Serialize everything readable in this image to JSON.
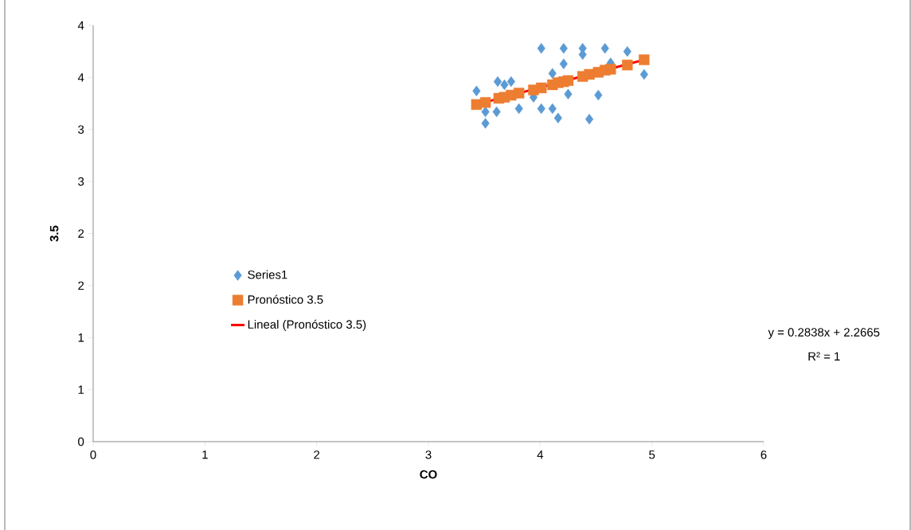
{
  "chart_data": {
    "type": "scatter",
    "xlabel": "CO",
    "ylabel": "3.5",
    "xlim": [
      0,
      6
    ],
    "xticks": [
      0,
      1,
      2,
      3,
      4,
      5,
      6
    ],
    "ylim": [
      0,
      4
    ],
    "yticks": [
      0,
      {
        "value": 0.5,
        "label": "1"
      },
      {
        "value": 1,
        "label": "1"
      },
      {
        "value": 1.5,
        "label": "2"
      },
      {
        "value": 2,
        "label": "2"
      },
      {
        "value": 2.5,
        "label": "3"
      },
      {
        "value": 3,
        "label": "3"
      },
      {
        "value": 3.5,
        "label": "4"
      },
      {
        "value": 4,
        "label": "4"
      }
    ],
    "legend": "left",
    "grid": false,
    "annotations": [
      "y = 0.2838x + 2.2665",
      "R² = 1"
    ],
    "series": [
      {
        "name": "Series1",
        "marker": "diamond",
        "color": "#5b9bd5",
        "x": [
          3.43,
          3.51,
          3.51,
          3.61,
          3.62,
          3.63,
          3.67,
          3.68,
          3.74,
          3.81,
          3.94,
          4.01,
          4.01,
          4.11,
          4.11,
          4.16,
          4.21,
          4.21,
          4.25,
          4.38,
          4.38,
          4.44,
          4.52,
          4.58,
          4.63,
          4.78,
          4.93
        ],
        "values": [
          3.37,
          3.17,
          3.06,
          3.17,
          3.46,
          null,
          null,
          3.43,
          3.46,
          3.2,
          3.31,
          3.78,
          3.2,
          3.54,
          3.2,
          3.11,
          3.63,
          3.78,
          3.34,
          3.78,
          3.72,
          3.1,
          3.33,
          3.78,
          3.64,
          3.75,
          3.53
        ]
      },
      {
        "name": "Pronóstico 3.5",
        "marker": "square",
        "color": "#ed7d31",
        "x": [
          3.43,
          3.51,
          3.61,
          3.63,
          3.68,
          3.74,
          3.81,
          3.94,
          4.01,
          4.11,
          4.16,
          4.21,
          4.25,
          4.38,
          4.44,
          4.52,
          4.58,
          4.63,
          4.78,
          4.93
        ],
        "values": [
          3.24,
          3.26,
          null,
          3.3,
          3.31,
          3.33,
          3.35,
          3.38,
          3.4,
          3.43,
          3.45,
          3.46,
          3.47,
          3.51,
          3.53,
          3.55,
          3.57,
          3.58,
          3.62,
          3.67
        ]
      },
      {
        "name": "Lineal (Pronóstico 3.5)",
        "type": "line",
        "marker": "none",
        "line_style": "solid",
        "color": "#ff0000",
        "x": [
          3.43,
          4.93
        ],
        "values": [
          3.24,
          3.67
        ]
      }
    ]
  }
}
